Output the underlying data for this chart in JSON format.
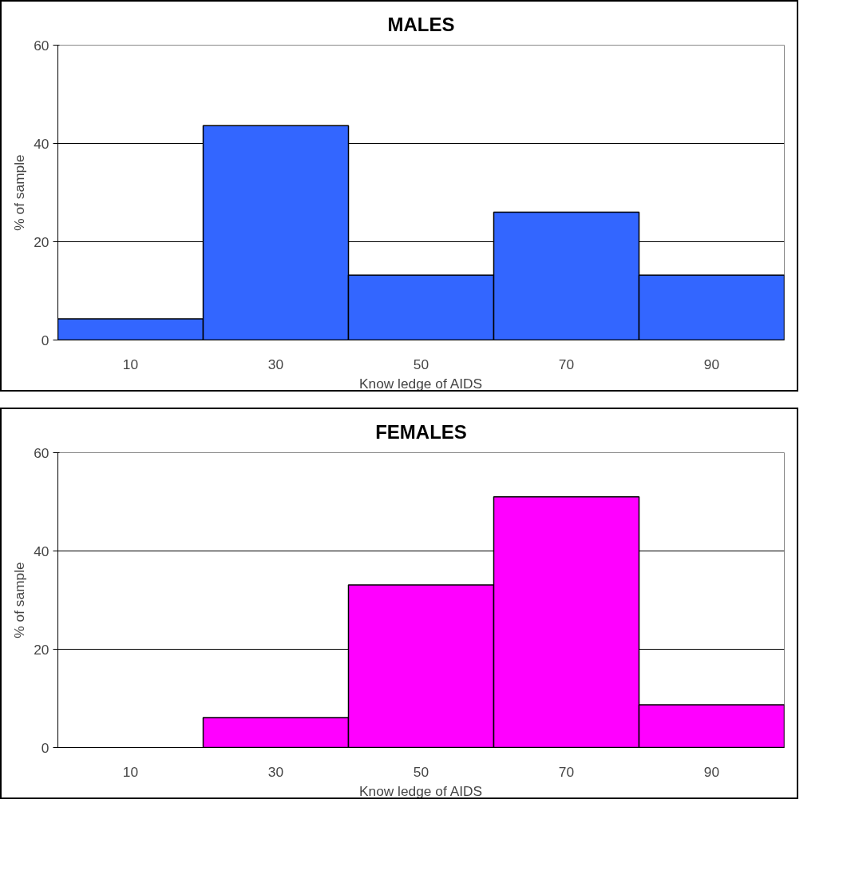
{
  "chart_data": [
    {
      "type": "histogram",
      "title": "MALES",
      "xlabel": "Know ledge of AIDS",
      "ylabel": "% of sample",
      "bins": [
        0,
        20,
        40,
        60,
        80,
        100
      ],
      "values": [
        4.3,
        43.6,
        13.2,
        26,
        13.2
      ],
      "color": "#3366ff",
      "xlim": [
        0,
        100
      ],
      "xticks": [
        10,
        30,
        50,
        70,
        90
      ],
      "ylim": [
        0,
        60
      ],
      "yticks": [
        0,
        20,
        40,
        60
      ],
      "grid": "y"
    },
    {
      "type": "histogram",
      "title": "FEMALES",
      "xlabel": "Know ledge of AIDS",
      "ylabel": "% of sample",
      "bins": [
        0,
        20,
        40,
        60,
        80,
        100
      ],
      "values": [
        0,
        6.1,
        33.1,
        51,
        8.7
      ],
      "color": "#ff00ff",
      "xlim": [
        0,
        100
      ],
      "xticks": [
        10,
        30,
        50,
        70,
        90
      ],
      "ylim": [
        0,
        60
      ],
      "yticks": [
        0,
        20,
        40,
        60
      ],
      "grid": "y"
    }
  ]
}
